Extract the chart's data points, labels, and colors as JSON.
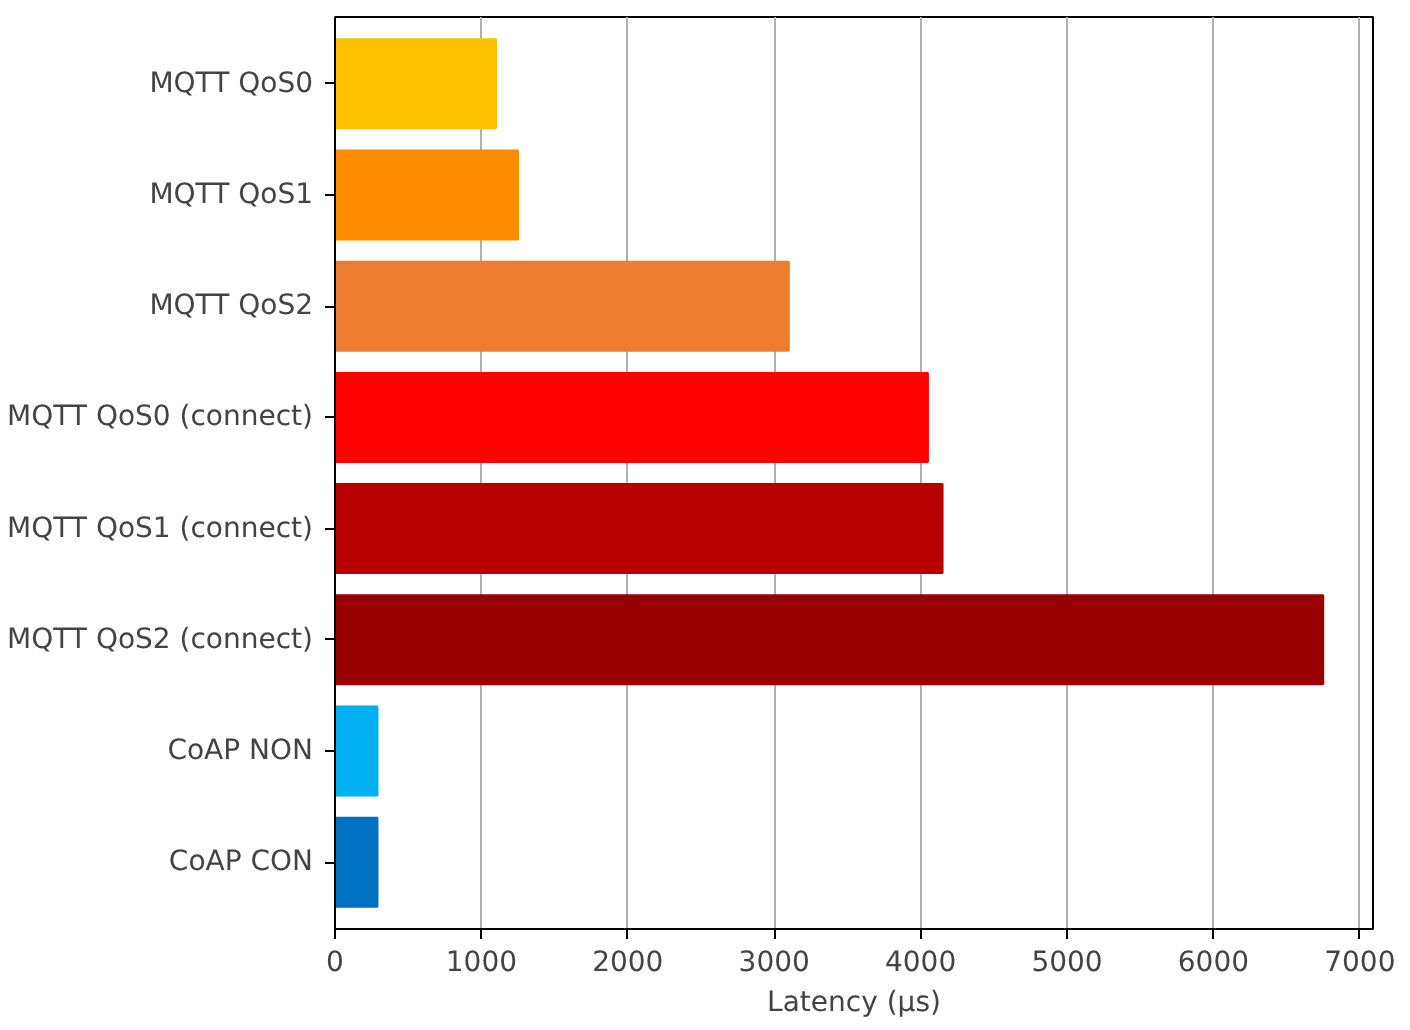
{
  "chart_data": {
    "type": "bar",
    "orientation": "horizontal",
    "xlabel": "Latency (µs)",
    "categories": [
      "MQTT QoS0",
      "MQTT QoS1",
      "MQTT QoS2",
      "MQTT QoS0 (connect)",
      "MQTT QoS1 (connect)",
      "MQTT QoS2 (connect)",
      "CoAP NON",
      "CoAP CON"
    ],
    "values": [
      1100,
      1250,
      3100,
      4050,
      4150,
      6750,
      290,
      290
    ],
    "colors": [
      "#ffc000",
      "#ff8c00",
      "#ed7d31",
      "#ff0000",
      "#b80000",
      "#990000",
      "#00b0f0",
      "#0070c0"
    ],
    "xlim": [
      0,
      7090
    ],
    "xticks": [
      0,
      1000,
      2000,
      3000,
      4000,
      5000,
      6000,
      7000
    ],
    "grid": "x"
  }
}
